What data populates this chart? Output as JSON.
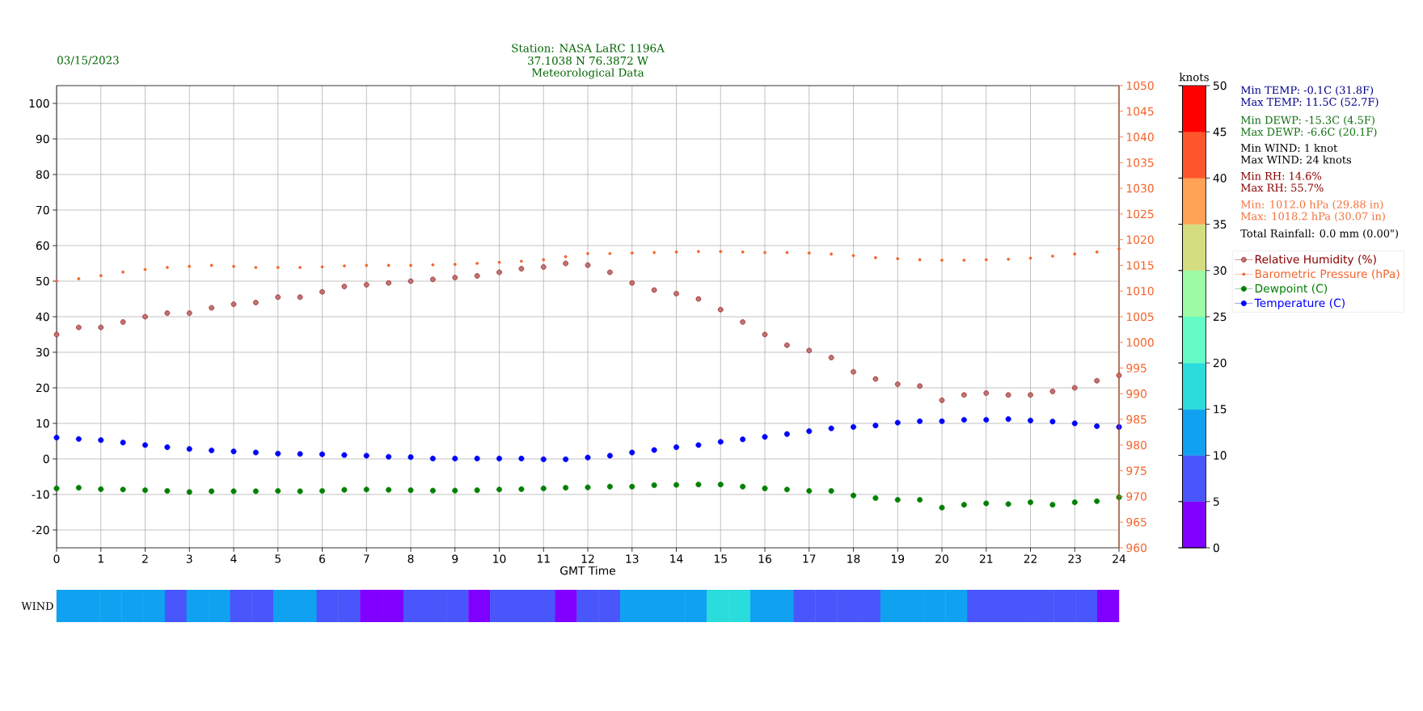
{
  "chart_data": [
    {
      "type": "scatter",
      "title": "Station: NASA LaRC 1196A",
      "subtitle": "37.1038 N 76.3872 W",
      "xlabel": "GMT Time",
      "annotations": [
        "03/15/2023",
        "Meteorological Data",
        "Min TEMP: -0.1C (31.8F)",
        "Max TEMP: 11.5C (52.7F)",
        "Min DEWP: -15.3C (4.5F)",
        "Max DEWP: -6.6C (20.1F)",
        "Min WIND: 1 knot",
        "Max WIND: 24 knots",
        "Min RH: 14.6%",
        "Max RH: 55.7%",
        "Min: 1012.0 hPa (29.88 in)",
        "Max: 1018.2 hPa (30.07 in)",
        "Total Rainfall: 0.0 mm (0.00\")"
      ],
      "xlim": [
        0,
        24
      ],
      "xticks": [
        0,
        1,
        2,
        3,
        4,
        5,
        6,
        7,
        8,
        9,
        10,
        11,
        12,
        13,
        14,
        15,
        16,
        17,
        18,
        19,
        20,
        21,
        22,
        23,
        24
      ],
      "ylim": [
        -25,
        105
      ],
      "yticks": [
        -20,
        -10,
        0,
        10,
        20,
        30,
        40,
        50,
        60,
        70,
        80,
        90,
        100
      ],
      "y2lim": [
        960,
        1050
      ],
      "y2ticks": [
        960,
        965,
        970,
        975,
        980,
        985,
        990,
        995,
        1000,
        1005,
        1010,
        1015,
        1020,
        1025,
        1030,
        1035,
        1040,
        1045,
        1050
      ],
      "grid": true,
      "legend": "right",
      "marker": "circle",
      "x": [
        0,
        0.5,
        1,
        1.5,
        2,
        2.5,
        3,
        3.5,
        4,
        4.5,
        5,
        5.5,
        6,
        6.5,
        7,
        7.5,
        8,
        8.5,
        9,
        9.5,
        10,
        10.5,
        11,
        11.5,
        12,
        12.5,
        13,
        13.5,
        14,
        14.5,
        15,
        15.5,
        16,
        16.5,
        17,
        17.5,
        18,
        18.5,
        19,
        19.5,
        20,
        20.5,
        21,
        21.5,
        22,
        22.5,
        23,
        23.5,
        24
      ],
      "series": [
        {
          "name": "Relative Humidity (%)",
          "color": "#8b0000",
          "values": [
            35,
            37,
            37,
            38.5,
            40,
            41,
            41,
            42.5,
            43.5,
            44,
            45.5,
            45.5,
            47,
            48.5,
            49,
            49.5,
            50,
            50.5,
            51,
            51.5,
            52.5,
            53.5,
            54,
            55,
            54.5,
            52.5,
            49.5,
            47.5,
            46.5,
            45,
            42,
            38.5,
            35,
            32,
            30.5,
            28.5,
            24.5,
            22.5,
            21,
            20.5,
            16.5,
            18,
            18.5,
            18,
            18,
            19,
            20,
            22,
            23.5
          ]
        },
        {
          "name": "Barometric Pressure (hPa)",
          "color": "#f5622a",
          "axis": "y2",
          "values": [
            1012.0,
            1012.4,
            1013.0,
            1013.7,
            1014.2,
            1014.6,
            1014.8,
            1015.0,
            1014.8,
            1014.6,
            1014.6,
            1014.6,
            1014.7,
            1014.9,
            1015.0,
            1015.0,
            1015.0,
            1015.1,
            1015.2,
            1015.4,
            1015.6,
            1015.8,
            1016.1,
            1016.7,
            1017.3,
            1017.3,
            1017.4,
            1017.5,
            1017.6,
            1017.7,
            1017.7,
            1017.6,
            1017.5,
            1017.5,
            1017.4,
            1017.2,
            1016.9,
            1016.5,
            1016.3,
            1016.1,
            1016.0,
            1016.0,
            1016.1,
            1016.2,
            1016.4,
            1016.8,
            1017.2,
            1017.6,
            1018.2
          ]
        },
        {
          "name": "Dewpoint (C)",
          "color": "#008000",
          "values": [
            -8.3,
            -8.1,
            -8.5,
            -8.6,
            -8.8,
            -9.0,
            -9.3,
            -9.1,
            -9.1,
            -9.1,
            -9.0,
            -9.1,
            -9.0,
            -8.7,
            -8.6,
            -8.7,
            -8.8,
            -8.9,
            -8.9,
            -8.8,
            -8.6,
            -8.5,
            -8.3,
            -8.1,
            -8.0,
            -7.8,
            -7.8,
            -7.4,
            -7.3,
            -7.2,
            -7.2,
            -7.8,
            -8.3,
            -8.6,
            -9.0,
            -9.0,
            -10.3,
            -11.0,
            -11.5,
            -11.5,
            -13.7,
            -12.9,
            -12.5,
            -12.7,
            -12.2,
            -12.9,
            -12.2,
            -11.9,
            -10.8
          ]
        },
        {
          "name": "Temperature (C)",
          "color": "#0000ff",
          "values": [
            6.0,
            5.6,
            5.3,
            4.6,
            3.9,
            3.3,
            2.8,
            2.4,
            2.1,
            1.8,
            1.5,
            1.4,
            1.3,
            1.1,
            0.9,
            0.6,
            0.5,
            0.1,
            0.1,
            0.1,
            0.1,
            0.1,
            -0.1,
            -0.1,
            0.4,
            0.9,
            1.8,
            2.5,
            3.3,
            3.9,
            4.8,
            5.5,
            6.2,
            7.0,
            7.8,
            8.6,
            9.0,
            9.4,
            10.2,
            10.6,
            10.6,
            11.0,
            11.0,
            11.2,
            10.8,
            10.5,
            10.0,
            9.2,
            9.0
          ]
        }
      ]
    },
    {
      "type": "heatmap",
      "categories": [
        null,
        null,
        null,
        null,
        null,
        null,
        null,
        null,
        null,
        null,
        null,
        null,
        null,
        null,
        null,
        null,
        null,
        null,
        null,
        null,
        null,
        null,
        null,
        null,
        null,
        null,
        null,
        null,
        null,
        null,
        null,
        null,
        null,
        null,
        null,
        null,
        null,
        null,
        null,
        null,
        null,
        null,
        null,
        null,
        null,
        null,
        null,
        null,
        null
      ],
      "y_categories": [
        "WIND"
      ],
      "cells": [
        [
          12,
          12,
          14,
          14,
          11,
          10,
          13,
          13,
          10,
          10,
          11,
          11,
          7,
          6,
          4,
          4,
          9,
          9,
          6,
          4,
          9,
          9,
          6,
          4,
          10,
          10,
          14,
          14,
          14,
          15,
          16,
          17,
          12,
          12,
          10,
          10,
          10,
          10,
          13,
          13,
          13,
          12,
          10,
          10,
          9,
          9,
          7,
          5,
          4
        ]
      ],
      "clabel": "knots",
      "clim": [
        0,
        50
      ],
      "cticks": [
        0,
        5,
        10,
        15,
        20,
        25,
        30,
        35,
        40,
        45,
        50
      ]
    }
  ]
}
